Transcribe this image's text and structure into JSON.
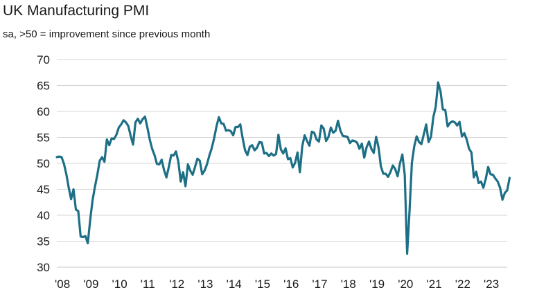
{
  "chart_data": {
    "type": "line",
    "title": "UK Manufacturing PMI",
    "subtitle": "sa, >50 = improvement since previous month",
    "ylim": [
      30,
      70
    ],
    "yticks": [
      30,
      35,
      40,
      45,
      50,
      55,
      60,
      65,
      70
    ],
    "xticks": [
      "'08",
      "'09",
      "'10",
      "'11",
      "'12",
      "'13",
      "'14",
      "'15",
      "'16",
      "'17",
      "'18",
      "'19",
      "'20",
      "'21",
      "'22",
      "'23"
    ],
    "xlim": [
      "2008-01",
      "2023-10"
    ],
    "grid": "horizontal",
    "line_color": "#1d6f86",
    "series": [
      {
        "points": [
          [
            "2008-01",
            51.2
          ],
          [
            "2008-02",
            51.3
          ],
          [
            "2008-03",
            51.2
          ],
          [
            "2008-04",
            49.9
          ],
          [
            "2008-05",
            47.9
          ],
          [
            "2008-06",
            45.3
          ],
          [
            "2008-07",
            43.1
          ],
          [
            "2008-08",
            45.0
          ],
          [
            "2008-09",
            41.1
          ],
          [
            "2008-10",
            40.8
          ],
          [
            "2008-11",
            35.9
          ],
          [
            "2008-12",
            35.8
          ],
          [
            "2009-01",
            36.0
          ],
          [
            "2009-02",
            34.6
          ],
          [
            "2009-03",
            39.1
          ],
          [
            "2009-04",
            42.9
          ],
          [
            "2009-05",
            45.5
          ],
          [
            "2009-06",
            47.8
          ],
          [
            "2009-07",
            50.5
          ],
          [
            "2009-08",
            51.2
          ],
          [
            "2009-09",
            50.3
          ],
          [
            "2009-10",
            54.6
          ],
          [
            "2009-11",
            53.5
          ],
          [
            "2009-12",
            54.8
          ],
          [
            "2010-01",
            54.7
          ],
          [
            "2010-02",
            55.5
          ],
          [
            "2010-03",
            56.9
          ],
          [
            "2010-04",
            57.5
          ],
          [
            "2010-05",
            58.3
          ],
          [
            "2010-06",
            57.9
          ],
          [
            "2010-07",
            57.2
          ],
          [
            "2010-08",
            55.3
          ],
          [
            "2010-09",
            53.6
          ],
          [
            "2010-10",
            57.9
          ],
          [
            "2010-11",
            58.6
          ],
          [
            "2010-12",
            57.7
          ],
          [
            "2011-01",
            58.5
          ],
          [
            "2011-02",
            59.0
          ],
          [
            "2011-03",
            56.9
          ],
          [
            "2011-04",
            54.6
          ],
          [
            "2011-05",
            52.8
          ],
          [
            "2011-06",
            51.6
          ],
          [
            "2011-07",
            49.9
          ],
          [
            "2011-08",
            49.8
          ],
          [
            "2011-09",
            50.7
          ],
          [
            "2011-10",
            48.7
          ],
          [
            "2011-11",
            47.3
          ],
          [
            "2011-12",
            49.3
          ],
          [
            "2012-01",
            51.6
          ],
          [
            "2012-02",
            51.5
          ],
          [
            "2012-03",
            52.3
          ],
          [
            "2012-04",
            50.3
          ],
          [
            "2012-05",
            46.5
          ],
          [
            "2012-06",
            48.3
          ],
          [
            "2012-07",
            45.6
          ],
          [
            "2012-08",
            49.8
          ],
          [
            "2012-09",
            48.6
          ],
          [
            "2012-10",
            47.8
          ],
          [
            "2012-11",
            49.3
          ],
          [
            "2012-12",
            50.9
          ],
          [
            "2013-01",
            50.5
          ],
          [
            "2013-02",
            47.9
          ],
          [
            "2013-03",
            48.6
          ],
          [
            "2013-04",
            49.8
          ],
          [
            "2013-05",
            51.5
          ],
          [
            "2013-06",
            52.9
          ],
          [
            "2013-07",
            54.8
          ],
          [
            "2013-08",
            57.1
          ],
          [
            "2013-09",
            58.9
          ],
          [
            "2013-10",
            57.7
          ],
          [
            "2013-11",
            57.6
          ],
          [
            "2013-12",
            56.3
          ],
          [
            "2014-01",
            56.4
          ],
          [
            "2014-02",
            56.2
          ],
          [
            "2014-03",
            55.4
          ],
          [
            "2014-04",
            57.0
          ],
          [
            "2014-05",
            57.0
          ],
          [
            "2014-06",
            57.5
          ],
          [
            "2014-07",
            54.8
          ],
          [
            "2014-08",
            52.5
          ],
          [
            "2014-09",
            51.6
          ],
          [
            "2014-10",
            53.2
          ],
          [
            "2014-11",
            53.5
          ],
          [
            "2014-12",
            52.5
          ],
          [
            "2015-01",
            53.0
          ],
          [
            "2015-02",
            54.1
          ],
          [
            "2015-03",
            54.0
          ],
          [
            "2015-04",
            51.9
          ],
          [
            "2015-05",
            52.0
          ],
          [
            "2015-06",
            51.4
          ],
          [
            "2015-07",
            51.9
          ],
          [
            "2015-08",
            51.5
          ],
          [
            "2015-09",
            51.8
          ],
          [
            "2015-10",
            55.5
          ],
          [
            "2015-11",
            52.7
          ],
          [
            "2015-12",
            51.9
          ],
          [
            "2016-01",
            52.9
          ],
          [
            "2016-02",
            50.8
          ],
          [
            "2016-03",
            51.0
          ],
          [
            "2016-04",
            49.2
          ],
          [
            "2016-05",
            50.1
          ],
          [
            "2016-06",
            52.1
          ],
          [
            "2016-07",
            48.3
          ],
          [
            "2016-08",
            53.3
          ],
          [
            "2016-09",
            55.4
          ],
          [
            "2016-10",
            54.3
          ],
          [
            "2016-11",
            53.4
          ],
          [
            "2016-12",
            56.1
          ],
          [
            "2017-01",
            55.9
          ],
          [
            "2017-02",
            54.6
          ],
          [
            "2017-03",
            54.2
          ],
          [
            "2017-04",
            57.3
          ],
          [
            "2017-05",
            56.7
          ],
          [
            "2017-06",
            54.3
          ],
          [
            "2017-07",
            55.1
          ],
          [
            "2017-08",
            56.9
          ],
          [
            "2017-09",
            55.9
          ],
          [
            "2017-10",
            56.3
          ],
          [
            "2017-11",
            58.2
          ],
          [
            "2017-12",
            56.3
          ],
          [
            "2018-01",
            55.3
          ],
          [
            "2018-02",
            55.2
          ],
          [
            "2018-03",
            55.1
          ],
          [
            "2018-04",
            53.9
          ],
          [
            "2018-05",
            54.4
          ],
          [
            "2018-06",
            54.3
          ],
          [
            "2018-07",
            54.0
          ],
          [
            "2018-08",
            52.8
          ],
          [
            "2018-09",
            53.8
          ],
          [
            "2018-10",
            51.1
          ],
          [
            "2018-11",
            53.1
          ],
          [
            "2018-12",
            54.2
          ],
          [
            "2019-01",
            52.8
          ],
          [
            "2019-02",
            52.0
          ],
          [
            "2019-03",
            55.1
          ],
          [
            "2019-04",
            53.1
          ],
          [
            "2019-05",
            49.4
          ],
          [
            "2019-06",
            48.0
          ],
          [
            "2019-07",
            48.0
          ],
          [
            "2019-08",
            47.4
          ],
          [
            "2019-09",
            48.3
          ],
          [
            "2019-10",
            49.6
          ],
          [
            "2019-11",
            48.9
          ],
          [
            "2019-12",
            47.5
          ],
          [
            "2020-01",
            50.0
          ],
          [
            "2020-02",
            51.7
          ],
          [
            "2020-03",
            47.8
          ],
          [
            "2020-04",
            32.6
          ],
          [
            "2020-05",
            40.7
          ],
          [
            "2020-06",
            50.1
          ],
          [
            "2020-07",
            53.3
          ],
          [
            "2020-08",
            55.2
          ],
          [
            "2020-09",
            54.1
          ],
          [
            "2020-10",
            53.7
          ],
          [
            "2020-11",
            55.6
          ],
          [
            "2020-12",
            57.5
          ],
          [
            "2021-01",
            54.1
          ],
          [
            "2021-02",
            55.1
          ],
          [
            "2021-03",
            58.9
          ],
          [
            "2021-04",
            60.9
          ],
          [
            "2021-05",
            65.6
          ],
          [
            "2021-06",
            63.9
          ],
          [
            "2021-07",
            60.4
          ],
          [
            "2021-08",
            60.3
          ],
          [
            "2021-09",
            57.1
          ],
          [
            "2021-10",
            57.8
          ],
          [
            "2021-11",
            58.1
          ],
          [
            "2021-12",
            57.9
          ],
          [
            "2022-01",
            57.3
          ],
          [
            "2022-02",
            58.0
          ],
          [
            "2022-03",
            55.2
          ],
          [
            "2022-04",
            55.8
          ],
          [
            "2022-05",
            54.6
          ],
          [
            "2022-06",
            52.8
          ],
          [
            "2022-07",
            52.1
          ],
          [
            "2022-08",
            47.3
          ],
          [
            "2022-09",
            48.4
          ],
          [
            "2022-10",
            46.2
          ],
          [
            "2022-11",
            46.5
          ],
          [
            "2022-12",
            45.3
          ],
          [
            "2023-01",
            47.0
          ],
          [
            "2023-02",
            49.3
          ],
          [
            "2023-03",
            47.9
          ],
          [
            "2023-04",
            47.8
          ],
          [
            "2023-05",
            47.1
          ],
          [
            "2023-06",
            46.5
          ],
          [
            "2023-07",
            45.3
          ],
          [
            "2023-08",
            43.0
          ],
          [
            "2023-09",
            44.3
          ],
          [
            "2023-10",
            44.8
          ],
          [
            "2023-11",
            47.2
          ]
        ]
      }
    ]
  }
}
